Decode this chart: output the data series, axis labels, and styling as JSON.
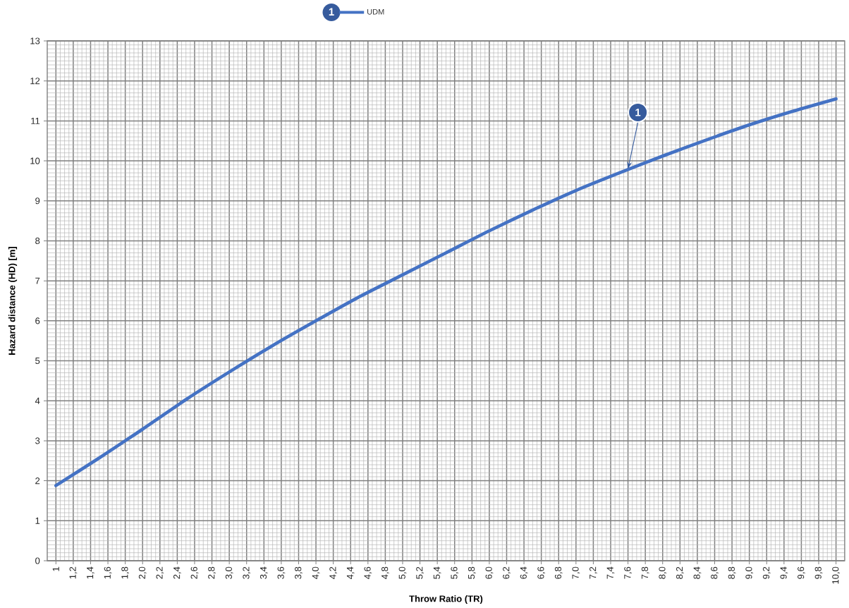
{
  "chart_data": {
    "type": "line",
    "xlabel": "Throw Ratio (TR)",
    "ylabel": "Hazard distance (HD) [m]",
    "legend_title": "1",
    "x": [
      1.0,
      1.5,
      1.8,
      2.0,
      2.5,
      3.0,
      3.5,
      4.0,
      4.5,
      5.0,
      5.5,
      6.0,
      6.5,
      7.0,
      7.5,
      8.0,
      8.5,
      9.0,
      9.5,
      10.0
    ],
    "series": [
      {
        "name": "UDM",
        "color": "#4472c4",
        "values": [
          1.88,
          2.57,
          3.0,
          3.29,
          4.03,
          4.72,
          5.38,
          6.0,
          6.6,
          7.15,
          7.7,
          8.25,
          8.77,
          9.26,
          9.7,
          10.12,
          10.52,
          10.9,
          11.24,
          11.55
        ]
      }
    ],
    "xlim": [
      0.9,
      10.1
    ],
    "ylim": [
      0,
      13
    ],
    "xticks": [
      1,
      {
        "value": 1.2,
        "label": "1,2"
      },
      {
        "value": 1.4,
        "label": "1,4"
      },
      {
        "value": 1.6,
        "label": "1,6"
      },
      {
        "value": 1.8,
        "label": "1,8"
      },
      {
        "value": 2.0,
        "label": "2,0"
      },
      {
        "value": 2.2,
        "label": "2,2"
      },
      {
        "value": 2.4,
        "label": "2,4"
      },
      {
        "value": 2.6,
        "label": "2,6"
      },
      {
        "value": 2.8,
        "label": "2,8"
      },
      {
        "value": 3.0,
        "label": "3,0"
      },
      {
        "value": 3.2,
        "label": "3,2"
      },
      {
        "value": 3.4,
        "label": "3,4"
      },
      {
        "value": 3.6,
        "label": "3,6"
      },
      {
        "value": 3.8,
        "label": "3,8"
      },
      {
        "value": 4.0,
        "label": "4,0"
      },
      {
        "value": 4.2,
        "label": "4,2"
      },
      {
        "value": 4.4,
        "label": "4,4"
      },
      {
        "value": 4.6,
        "label": "4,6"
      },
      {
        "value": 4.8,
        "label": "4,8"
      },
      {
        "value": 5.0,
        "label": "5,0"
      },
      {
        "value": 5.2,
        "label": "5,2"
      },
      {
        "value": 5.4,
        "label": "5,4"
      },
      {
        "value": 5.6,
        "label": "5,6"
      },
      {
        "value": 5.8,
        "label": "5,8"
      },
      {
        "value": 6.0,
        "label": "6,0"
      },
      {
        "value": 6.2,
        "label": "6,2"
      },
      {
        "value": 6.4,
        "label": "6,4"
      },
      {
        "value": 6.6,
        "label": "6,6"
      },
      {
        "value": 6.8,
        "label": "6,8"
      },
      {
        "value": 7.0,
        "label": "7,0"
      },
      {
        "value": 7.2,
        "label": "7,2"
      },
      {
        "value": 7.4,
        "label": "7,4"
      },
      {
        "value": 7.6,
        "label": "7,6"
      },
      {
        "value": 7.8,
        "label": "7,8"
      },
      {
        "value": 8.0,
        "label": "8,0"
      },
      {
        "value": 8.2,
        "label": "8,2"
      },
      {
        "value": 8.4,
        "label": "8,4"
      },
      {
        "value": 8.6,
        "label": "8,6"
      },
      {
        "value": 8.8,
        "label": "8,8"
      },
      {
        "value": 9.0,
        "label": "9,0"
      },
      {
        "value": 9.2,
        "label": "9,2"
      },
      {
        "value": 9.4,
        "label": "9,4"
      },
      {
        "value": 9.6,
        "label": "9,6"
      },
      {
        "value": 9.8,
        "label": "9,8"
      },
      {
        "value": 10.0,
        "label": "10,0"
      }
    ],
    "yticks": [
      0,
      1,
      2,
      3,
      4,
      5,
      6,
      7,
      8,
      9,
      10,
      11,
      12,
      13
    ],
    "grid": true,
    "legend": "top",
    "annotations": [
      {
        "text": "1",
        "x": 7.6,
        "y": 9.8
      }
    ]
  }
}
